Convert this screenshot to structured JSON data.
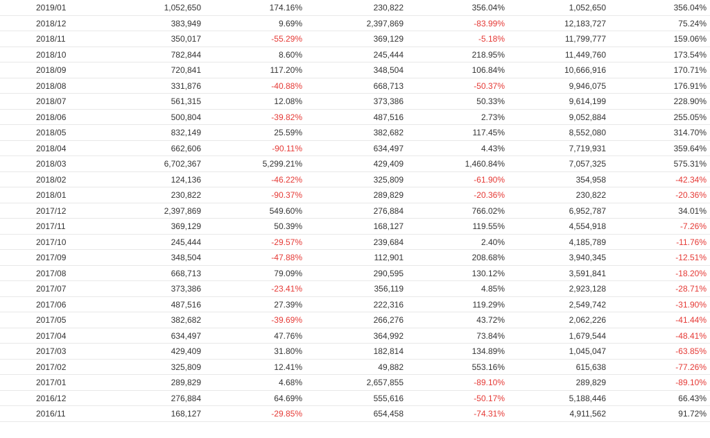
{
  "table": {
    "rows": [
      [
        "2019/01",
        "1,052,650",
        "174.16%",
        "230,822",
        "356.04%",
        "1,052,650",
        "356.04%"
      ],
      [
        "2018/12",
        "383,949",
        "9.69%",
        "2,397,869",
        "-83.99%",
        "12,183,727",
        "75.24%"
      ],
      [
        "2018/11",
        "350,017",
        "-55.29%",
        "369,129",
        "-5.18%",
        "11,799,777",
        "159.06%"
      ],
      [
        "2018/10",
        "782,844",
        "8.60%",
        "245,444",
        "218.95%",
        "11,449,760",
        "173.54%"
      ],
      [
        "2018/09",
        "720,841",
        "117.20%",
        "348,504",
        "106.84%",
        "10,666,916",
        "170.71%"
      ],
      [
        "2018/08",
        "331,876",
        "-40.88%",
        "668,713",
        "-50.37%",
        "9,946,075",
        "176.91%"
      ],
      [
        "2018/07",
        "561,315",
        "12.08%",
        "373,386",
        "50.33%",
        "9,614,199",
        "228.90%"
      ],
      [
        "2018/06",
        "500,804",
        "-39.82%",
        "487,516",
        "2.73%",
        "9,052,884",
        "255.05%"
      ],
      [
        "2018/05",
        "832,149",
        "25.59%",
        "382,682",
        "117.45%",
        "8,552,080",
        "314.70%"
      ],
      [
        "2018/04",
        "662,606",
        "-90.11%",
        "634,497",
        "4.43%",
        "7,719,931",
        "359.64%"
      ],
      [
        "2018/03",
        "6,702,367",
        "5,299.21%",
        "429,409",
        "1,460.84%",
        "7,057,325",
        "575.31%"
      ],
      [
        "2018/02",
        "124,136",
        "-46.22%",
        "325,809",
        "-61.90%",
        "354,958",
        "-42.34%"
      ],
      [
        "2018/01",
        "230,822",
        "-90.37%",
        "289,829",
        "-20.36%",
        "230,822",
        "-20.36%"
      ],
      [
        "2017/12",
        "2,397,869",
        "549.60%",
        "276,884",
        "766.02%",
        "6,952,787",
        "34.01%"
      ],
      [
        "2017/11",
        "369,129",
        "50.39%",
        "168,127",
        "119.55%",
        "4,554,918",
        "-7.26%"
      ],
      [
        "2017/10",
        "245,444",
        "-29.57%",
        "239,684",
        "2.40%",
        "4,185,789",
        "-11.76%"
      ],
      [
        "2017/09",
        "348,504",
        "-47.88%",
        "112,901",
        "208.68%",
        "3,940,345",
        "-12.51%"
      ],
      [
        "2017/08",
        "668,713",
        "79.09%",
        "290,595",
        "130.12%",
        "3,591,841",
        "-18.20%"
      ],
      [
        "2017/07",
        "373,386",
        "-23.41%",
        "356,119",
        "4.85%",
        "2,923,128",
        "-28.71%"
      ],
      [
        "2017/06",
        "487,516",
        "27.39%",
        "222,316",
        "119.29%",
        "2,549,742",
        "-31.90%"
      ],
      [
        "2017/05",
        "382,682",
        "-39.69%",
        "266,276",
        "43.72%",
        "2,062,226",
        "-41.44%"
      ],
      [
        "2017/04",
        "634,497",
        "47.76%",
        "364,992",
        "73.84%",
        "1,679,544",
        "-48.41%"
      ],
      [
        "2017/03",
        "429,409",
        "31.80%",
        "182,814",
        "134.89%",
        "1,045,047",
        "-63.85%"
      ],
      [
        "2017/02",
        "325,809",
        "12.41%",
        "49,882",
        "553.16%",
        "615,638",
        "-77.26%"
      ],
      [
        "2017/01",
        "289,829",
        "4.68%",
        "2,657,855",
        "-89.10%",
        "289,829",
        "-89.10%"
      ],
      [
        "2016/12",
        "276,884",
        "64.69%",
        "555,616",
        "-50.17%",
        "5,188,446",
        "66.43%"
      ],
      [
        "2016/11",
        "168,127",
        "-29.85%",
        "654,458",
        "-74.31%",
        "4,911,562",
        "91.72%"
      ]
    ],
    "negative_color": "#e53935",
    "text_color": "#333333",
    "border_color": "#e8e8e8"
  }
}
